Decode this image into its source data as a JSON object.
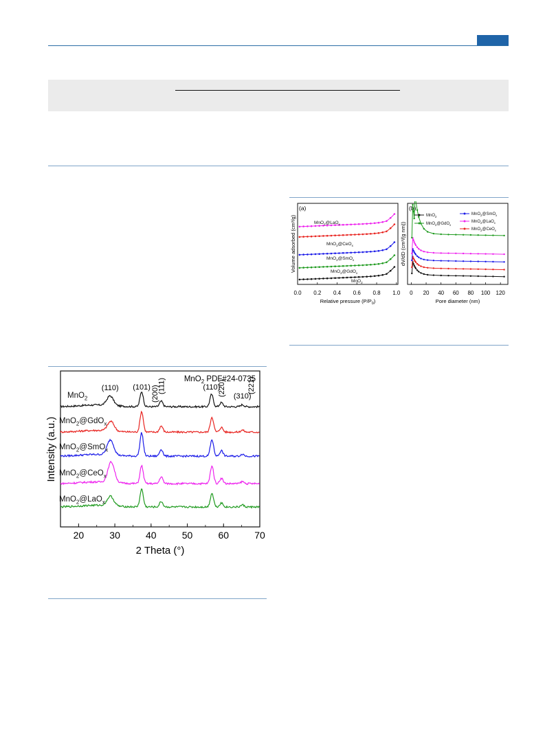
{
  "header": {
    "accent_color": "#1f64a8"
  },
  "chart_data": [
    {
      "type": "line",
      "panel": "xrd",
      "title": "MnO2 PDF#24-0735",
      "title_parts": {
        "base": "MnO",
        "sub": "2",
        "rest": " PDF#24-0735"
      },
      "xlabel": "2 Theta (°)",
      "ylabel": "Intensity (a.u.)",
      "xlim": [
        15,
        70
      ],
      "xticks": [
        "20",
        "30",
        "40",
        "50",
        "60",
        "70"
      ],
      "peaks": [
        {
          "label": "(110)",
          "x": 28.7
        },
        {
          "label": "(101)",
          "x": 37.4
        },
        {
          "label": "(200)",
          "x": 41.0
        },
        {
          "label": "(111)",
          "x": 42.8
        },
        {
          "label": "(110)",
          "x": 56.7
        },
        {
          "label": "(220)",
          "x": 59.4
        },
        {
          "label": "(310)",
          "x": 65.2
        },
        {
          "label": "(221)",
          "x": 67.5
        }
      ],
      "series": [
        {
          "name": "MnO2",
          "label_base": "MnO",
          "label_sub": "2",
          "color": "#111111",
          "peaks": [
            [
              28.7,
              14
            ],
            [
              37.4,
              22
            ],
            [
              42.8,
              8
            ],
            [
              56.7,
              18
            ],
            [
              59.4,
              6
            ],
            [
              65.2,
              3
            ]
          ]
        },
        {
          "name": "MnO2@GdOx",
          "label_base": "MnO",
          "label_sub": "2",
          "label_rest": "@GdO",
          "label_sub2": "x",
          "color": "#e8231f",
          "peaks": [
            [
              28.9,
              14
            ],
            [
              37.4,
              30
            ],
            [
              42.8,
              9
            ],
            [
              56.8,
              22
            ],
            [
              59.4,
              7
            ],
            [
              65.2,
              3
            ]
          ]
        },
        {
          "name": "MnO2@SmOx",
          "label_base": "MnO",
          "label_sub": "2",
          "label_rest": "@SmO",
          "label_sub2": "x",
          "color": "#1a1ae8",
          "peaks": [
            [
              28.8,
              22
            ],
            [
              37.4,
              34
            ],
            [
              42.8,
              10
            ],
            [
              56.8,
              24
            ],
            [
              59.4,
              8
            ],
            [
              65.2,
              3
            ]
          ]
        },
        {
          "name": "MnO2@CeOx",
          "label_base": "MnO",
          "label_sub": "2",
          "label_rest": "@CeO",
          "label_sub2": "x",
          "color": "#ee22ee",
          "peaks": [
            [
              29.0,
              30
            ],
            [
              37.4,
              26
            ],
            [
              42.8,
              10
            ],
            [
              56.8,
              26
            ],
            [
              59.4,
              8
            ],
            [
              65.2,
              3
            ]
          ]
        },
        {
          "name": "MnO2@LaOx",
          "label_base": "MnO",
          "label_sub": "2",
          "label_rest": "@LaO",
          "label_sub2": "x",
          "color": "#1e9a1e",
          "peaks": [
            [
              28.8,
              14
            ],
            [
              37.4,
              26
            ],
            [
              42.8,
              8
            ],
            [
              56.8,
              20
            ],
            [
              59.4,
              6
            ],
            [
              65.2,
              3
            ]
          ]
        }
      ]
    },
    {
      "type": "line",
      "panel": "a",
      "panel_label": "(a)",
      "xlabel": "Relative pressure (P/P",
      "xlabel_sub": "0",
      "xlabel_end": ")",
      "ylabel": "Volume adsorbed (cm³/g)",
      "xlim": [
        0,
        1
      ],
      "xticks": [
        "0.0",
        "0.2",
        "0.4",
        "0.6",
        "0.8",
        "1.0"
      ],
      "series": [
        {
          "name": "MnO2@LaOx",
          "label_base": "MnO",
          "label_sub": "2",
          "label_rest": "@LaO",
          "label_sub2": "x",
          "color": "#ee22ee",
          "offset": 4
        },
        {
          "name": "MnO2@CeOx",
          "label_base": "MnO",
          "label_sub": "2",
          "label_rest": "@CeO",
          "label_sub2": "x",
          "color": "#e8231f",
          "offset": 3
        },
        {
          "name": "MnO2@SmOx",
          "label_base": "MnO",
          "label_sub": "2",
          "label_rest": "@SmO",
          "label_sub2": "x",
          "color": "#1a1ae8",
          "offset": 2
        },
        {
          "name": "MnO2@GdOx",
          "label_base": "MnO",
          "label_sub": "2",
          "label_rest": "@GdO",
          "label_sub2": "x",
          "color": "#1e9a1e",
          "offset": 1
        },
        {
          "name": "MnO2",
          "label_base": "MnO",
          "label_sub": "2",
          "color": "#111111",
          "offset": 0
        }
      ]
    },
    {
      "type": "line",
      "panel": "b",
      "panel_label": "(b)",
      "xlabel": "Pore diameter (nm)",
      "ylabel": "dV/dD (cm³/(g nm))",
      "xlim": [
        -5,
        130
      ],
      "xticks": [
        "0",
        "20",
        "40",
        "60",
        "80",
        "100",
        "120"
      ],
      "legend": [
        {
          "name": "MnO2",
          "label_base": "MnO",
          "label_sub": "2",
          "color": "#111111"
        },
        {
          "name": "MnO2@GdOx",
          "label_base": "MnO",
          "label_sub": "2",
          "label_rest": "@GdO",
          "label_sub2": "x",
          "color": "#1e9a1e"
        },
        {
          "name": "MnO2@SmOx",
          "label_base": "MnO",
          "label_sub": "2",
          "label_rest": "@SmO",
          "label_sub2": "x",
          "color": "#1a1ae8"
        },
        {
          "name": "MnO2@LaOx",
          "label_base": "MnO",
          "label_sub": "2",
          "label_rest": "@LaO",
          "label_sub2": "x",
          "color": "#ee22ee"
        },
        {
          "name": "MnO2@CeOx",
          "label_base": "MnO",
          "label_sub": "2",
          "label_rest": "@CeO",
          "label_sub2": "x",
          "color": "#e8231f"
        }
      ],
      "series": [
        {
          "name": "MnO2",
          "color": "#111111",
          "peak": 4,
          "tail": 0.6,
          "level": 0
        },
        {
          "name": "MnO2@CeOx",
          "color": "#e8231f",
          "peak": 3.5,
          "tail": 1.0,
          "level": 1
        },
        {
          "name": "MnO2@SmOx",
          "color": "#1a1ae8",
          "peak": 3.5,
          "tail": 1.4,
          "level": 2
        },
        {
          "name": "MnO2@LaOx",
          "color": "#ee22ee",
          "peak": 4.5,
          "tail": 1.8,
          "level": 3
        },
        {
          "name": "MnO2@GdOx",
          "color": "#1e9a1e",
          "peak": 20,
          "tail": 3.2,
          "level": 4
        }
      ]
    }
  ]
}
